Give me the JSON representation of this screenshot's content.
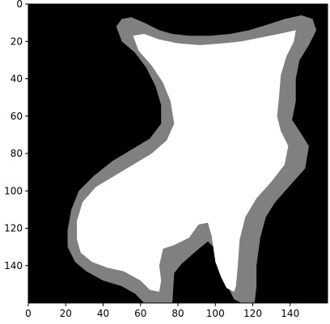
{
  "chart_data": {
    "type": "heatmap",
    "description_values": "Binary mask image with three intensity levels: background 0 (black), border band (gray), interior (white). Shape: 160 x 160 pixels.",
    "image_shape": [
      160,
      160
    ],
    "xlim": [
      0,
      160
    ],
    "ylim": [
      160,
      0
    ],
    "xticks": [
      0,
      20,
      40,
      60,
      80,
      100,
      120,
      140
    ],
    "yticks": [
      0,
      20,
      40,
      60,
      80,
      100,
      120,
      140
    ],
    "levels": [
      {
        "name": "background",
        "color": "#000000"
      },
      {
        "name": "border",
        "color": "#808080"
      },
      {
        "name": "interior",
        "color": "#ffffff"
      }
    ],
    "outer_contour": [
      [
        47,
        12
      ],
      [
        50,
        8
      ],
      [
        55,
        7
      ],
      [
        62,
        10
      ],
      [
        70,
        14
      ],
      [
        77,
        16
      ],
      [
        86,
        17
      ],
      [
        97,
        17
      ],
      [
        108,
        16
      ],
      [
        118,
        14
      ],
      [
        128,
        11
      ],
      [
        137,
        8
      ],
      [
        146,
        6
      ],
      [
        152,
        8
      ],
      [
        154,
        14
      ],
      [
        150,
        22
      ],
      [
        145,
        30
      ],
      [
        143,
        40
      ],
      [
        143,
        52
      ],
      [
        141,
        62
      ],
      [
        145,
        68
      ],
      [
        150,
        76
      ],
      [
        148,
        88
      ],
      [
        140,
        97
      ],
      [
        132,
        106
      ],
      [
        127,
        114
      ],
      [
        124,
        125
      ],
      [
        122,
        140
      ],
      [
        122,
        151
      ],
      [
        121,
        160
      ],
      [
        114,
        160
      ],
      [
        110,
        158
      ],
      [
        106,
        150
      ],
      [
        102,
        140
      ],
      [
        100,
        131
      ],
      [
        96,
        127
      ],
      [
        90,
        132
      ],
      [
        82,
        139
      ],
      [
        78,
        144
      ],
      [
        77,
        160
      ],
      [
        70,
        160
      ],
      [
        62,
        160
      ],
      [
        57,
        155
      ],
      [
        50,
        151
      ],
      [
        40,
        148
      ],
      [
        31,
        143
      ],
      [
        25,
        138
      ],
      [
        21,
        130
      ],
      [
        21,
        121
      ],
      [
        23,
        110
      ],
      [
        27,
        100
      ],
      [
        35,
        92
      ],
      [
        45,
        84
      ],
      [
        55,
        78
      ],
      [
        65,
        72
      ],
      [
        71,
        64
      ],
      [
        71,
        54
      ],
      [
        68,
        44
      ],
      [
        63,
        34
      ],
      [
        57,
        26
      ],
      [
        50,
        20
      ]
    ],
    "inner_contour": [
      [
        56,
        17
      ],
      [
        62,
        16
      ],
      [
        70,
        19
      ],
      [
        80,
        21
      ],
      [
        92,
        22
      ],
      [
        104,
        21
      ],
      [
        114,
        20
      ],
      [
        124,
        18
      ],
      [
        134,
        16
      ],
      [
        143,
        14
      ],
      [
        142,
        20
      ],
      [
        138,
        28
      ],
      [
        135,
        38
      ],
      [
        134,
        50
      ],
      [
        133,
        60
      ],
      [
        135,
        68
      ],
      [
        139,
        76
      ],
      [
        137,
        86
      ],
      [
        130,
        95
      ],
      [
        122,
        104
      ],
      [
        116,
        114
      ],
      [
        113,
        126
      ],
      [
        112,
        140
      ],
      [
        111,
        151
      ],
      [
        110,
        154
      ],
      [
        106,
        152
      ],
      [
        103,
        146
      ],
      [
        100,
        138
      ],
      [
        98,
        124
      ],
      [
        96,
        117
      ],
      [
        91,
        118
      ],
      [
        86,
        125
      ],
      [
        78,
        129
      ],
      [
        72,
        131
      ],
      [
        70,
        140
      ],
      [
        71,
        148
      ],
      [
        70,
        154
      ],
      [
        65,
        153
      ],
      [
        60,
        148
      ],
      [
        51,
        143
      ],
      [
        42,
        141
      ],
      [
        34,
        138
      ],
      [
        28,
        133
      ],
      [
        26,
        126
      ],
      [
        26,
        116
      ],
      [
        29,
        106
      ],
      [
        36,
        98
      ],
      [
        46,
        92
      ],
      [
        56,
        86
      ],
      [
        66,
        80
      ],
      [
        74,
        73
      ],
      [
        78,
        64
      ],
      [
        76,
        52
      ],
      [
        72,
        42
      ],
      [
        66,
        33
      ],
      [
        59,
        25
      ]
    ]
  }
}
